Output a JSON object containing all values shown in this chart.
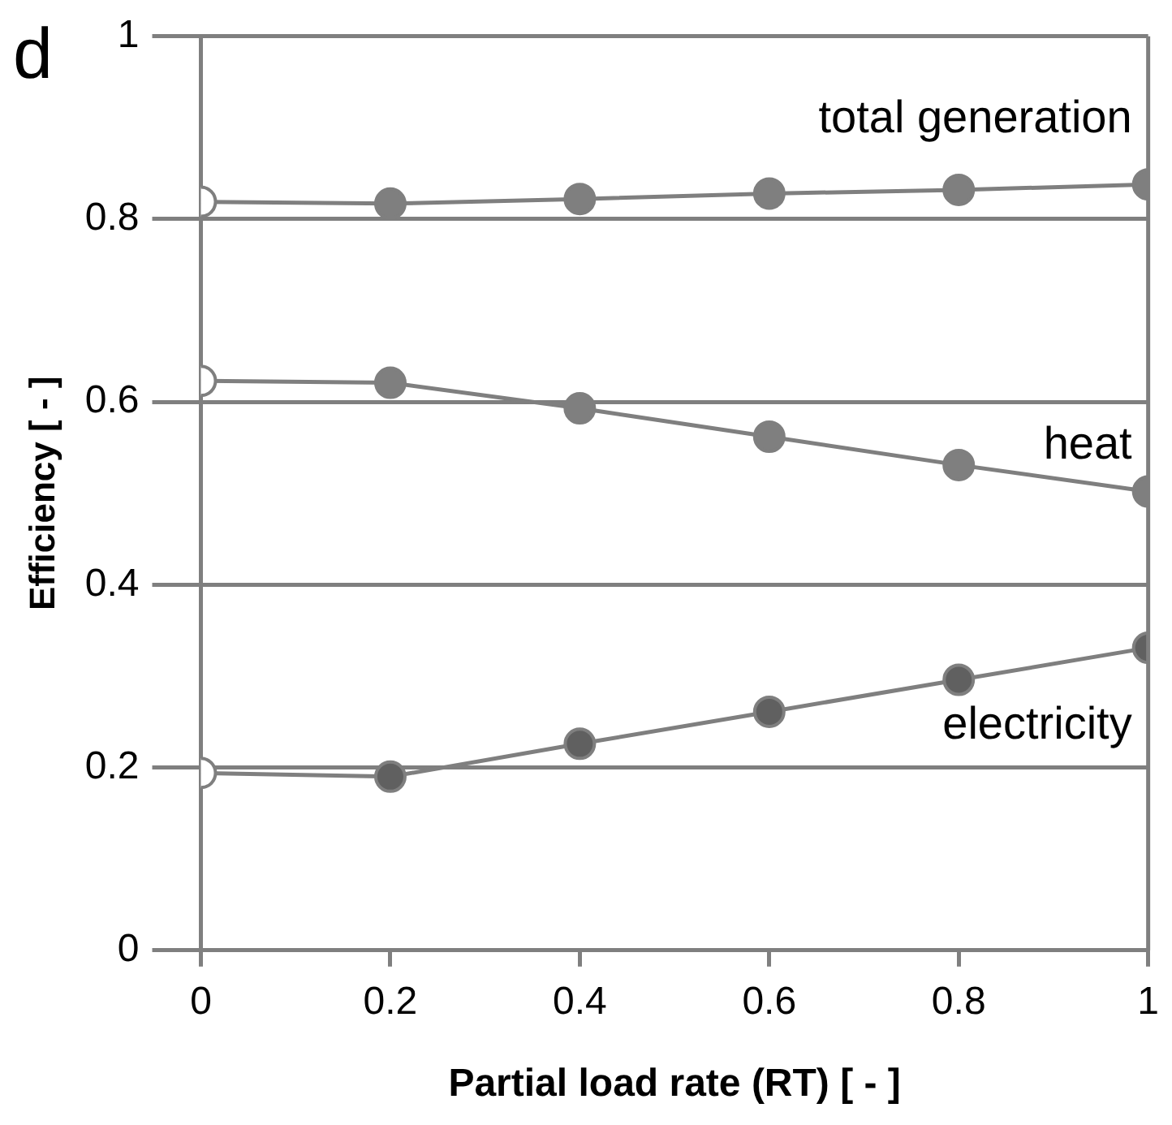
{
  "chart_data": {
    "type": "line",
    "xlabel": "Partial load rate (RT) [ - ]",
    "ylabel": "Efficiency [ - ]",
    "x": [
      0,
      0.2,
      0.4,
      0.6,
      0.8,
      1
    ],
    "series": [
      {
        "name": "total generation",
        "color": "#7f7f7f",
        "colors": [
          "#ffffff",
          "#7f7f7f",
          "#7f7f7f",
          "#7f7f7f",
          "#7f7f7f",
          "#7f7f7f"
        ],
        "values": [
          0.819,
          0.817,
          0.822,
          0.828,
          0.832,
          0.838
        ]
      },
      {
        "name": "heat",
        "color": "#7f7f7f",
        "colors": [
          "#ffffff",
          "#7f7f7f",
          "#7f7f7f",
          "#7f7f7f",
          "#7f7f7f",
          "#7f7f7f"
        ],
        "values": [
          0.623,
          0.621,
          0.593,
          0.562,
          0.531,
          0.502
        ]
      },
      {
        "name": "electricity",
        "color": "#7f7f7f",
        "colors": [
          "#ffffff",
          "#606060",
          "#606060",
          "#606060",
          "#606060",
          "#606060"
        ],
        "values": [
          0.194,
          0.19,
          0.226,
          0.261,
          0.296,
          0.331
        ]
      }
    ],
    "xlim": [
      0,
      1
    ],
    "xticks": [
      0,
      0.2,
      0.4,
      0.6,
      0.8,
      1
    ],
    "ylim": [
      0,
      1
    ],
    "yticks": [
      0,
      0.2,
      0.4,
      0.6,
      0.8,
      1
    ],
    "grid": "y",
    "legend": false,
    "marker": "circle",
    "line_style": "solid",
    "annotations": [
      "d"
    ]
  }
}
